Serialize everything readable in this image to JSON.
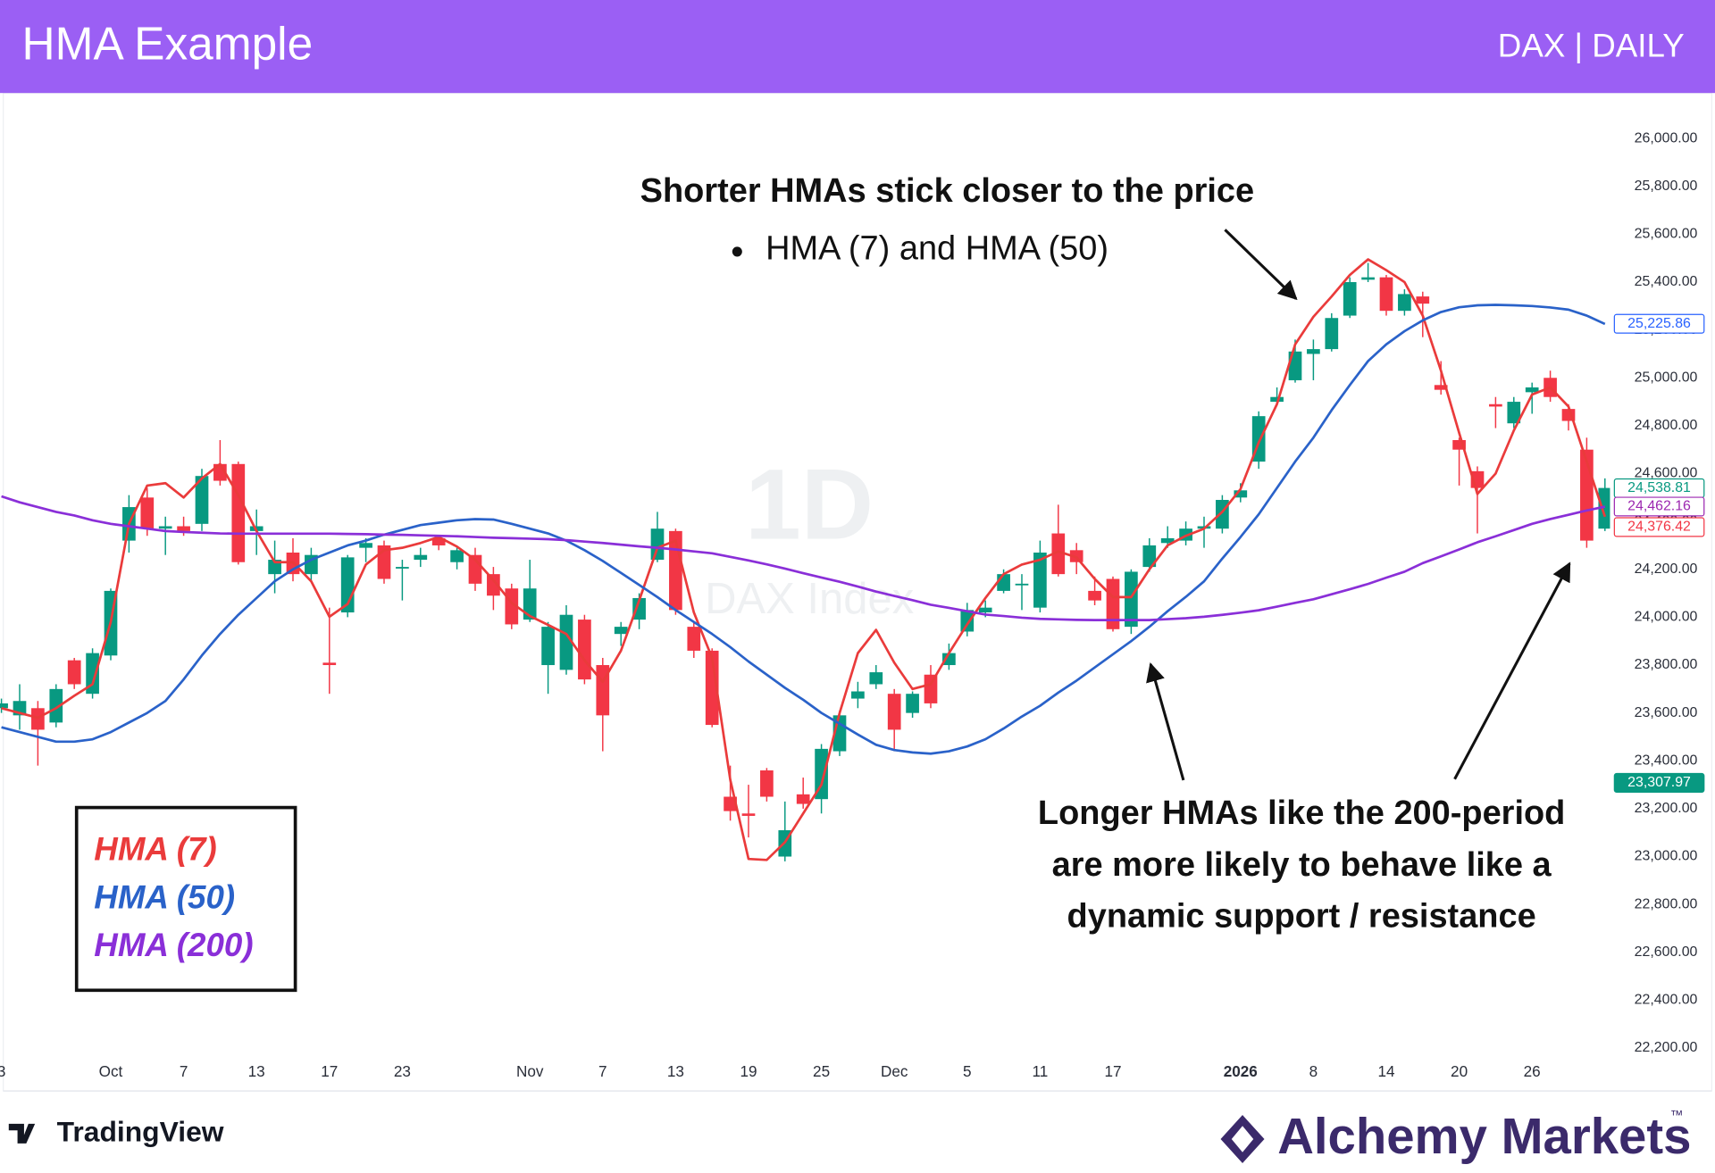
{
  "chart_data": {
    "type": "candlestick",
    "title": "HMA Example",
    "subtitle": "DAX | DAILY",
    "watermark": [
      "1D",
      "DAX Index"
    ],
    "categories": [
      "3",
      null,
      null,
      null,
      null,
      null,
      "Oct",
      null,
      null,
      null,
      "7",
      null,
      null,
      null,
      "13",
      null,
      null,
      null,
      "17",
      null,
      null,
      null,
      "23",
      null,
      null,
      null,
      null,
      null,
      null,
      "Nov",
      null,
      null,
      null,
      "7",
      null,
      null,
      null,
      "13",
      null,
      null,
      null,
      "19",
      null,
      null,
      null,
      "25",
      null,
      null,
      null,
      "Dec",
      null,
      null,
      null,
      "5",
      null,
      null,
      null,
      "11",
      null,
      null,
      null,
      "17",
      null,
      null,
      null,
      null,
      null,
      null,
      "2026",
      null,
      null,
      null,
      "8",
      null,
      null,
      null,
      "14",
      null,
      null,
      null,
      "20",
      null,
      null,
      null,
      "26",
      null,
      null,
      null,
      null
    ],
    "open": [
      23620,
      23590,
      23620,
      23560,
      23820,
      23680,
      23840,
      24320,
      24500,
      24370,
      24380,
      24390,
      24640,
      24640,
      24360,
      24180,
      24270,
      24180,
      23810,
      24020,
      24290,
      24300,
      24210,
      24240,
      24330,
      24230,
      24260,
      24180,
      24120,
      23990,
      23800,
      23780,
      23990,
      23800,
      23930,
      23990,
      24240,
      24360,
      23960,
      23860,
      23250,
      23180,
      23360,
      23000,
      23260,
      23240,
      23440,
      23660,
      23720,
      23680,
      23600,
      23760,
      23800,
      23940,
      24020,
      24110,
      24140,
      24040,
      24350,
      24280,
      24110,
      24160,
      23960,
      24210,
      24310,
      24320,
      24370,
      24370,
      24500,
      24650,
      24900,
      24990,
      25100,
      25120,
      25260,
      25410,
      25420,
      25280,
      25340,
      24970,
      24740,
      24610,
      24890,
      24810,
      24940,
      25000,
      24870,
      24700,
      24370
    ],
    "high": [
      23660,
      23720,
      23650,
      23720,
      23830,
      23870,
      24120,
      24510,
      24540,
      24420,
      24420,
      24620,
      24740,
      24650,
      24450,
      24320,
      24330,
      24290,
      24040,
      24260,
      24330,
      24320,
      24240,
      24290,
      24340,
      24290,
      24290,
      24210,
      24140,
      24240,
      23980,
      24050,
      24010,
      23830,
      23980,
      24100,
      24440,
      24370,
      23980,
      23870,
      23380,
      23300,
      23370,
      23230,
      23330,
      23470,
      23610,
      23730,
      23800,
      23700,
      23690,
      23800,
      23890,
      24060,
      24070,
      24200,
      24180,
      24320,
      24470,
      24310,
      24170,
      24170,
      24200,
      24330,
      24380,
      24400,
      24420,
      24510,
      24560,
      24860,
      24960,
      25160,
      25160,
      25270,
      25420,
      25480,
      25430,
      25370,
      25360,
      25070,
      24750,
      24630,
      24920,
      24920,
      24980,
      25030,
      24890,
      24750,
      24580
    ],
    "low": [
      23600,
      23530,
      23380,
      23540,
      23700,
      23660,
      23820,
      24270,
      24340,
      24260,
      24340,
      24360,
      24550,
      24220,
      24260,
      24100,
      24150,
      24150,
      23680,
      24000,
      24230,
      24140,
      24070,
      24210,
      24280,
      24200,
      24110,
      24030,
      23950,
      23980,
      23680,
      23760,
      23720,
      23440,
      23880,
      23950,
      24230,
      24010,
      23830,
      23540,
      23150,
      23080,
      23230,
      22980,
      23200,
      23180,
      23420,
      23620,
      23700,
      23440,
      23580,
      23620,
      23780,
      23920,
      24000,
      24100,
      24030,
      24020,
      24170,
      24180,
      24050,
      23940,
      23930,
      24190,
      24290,
      24300,
      24290,
      24350,
      24480,
      24620,
      24890,
      24980,
      24990,
      25110,
      25250,
      25400,
      25260,
      25260,
      25170,
      24930,
      24550,
      24350,
      24790,
      24790,
      24850,
      24900,
      24780,
      24290,
      24360
    ],
    "close": [
      23640,
      23650,
      23530,
      23700,
      23720,
      23850,
      24110,
      24460,
      24370,
      24380,
      24360,
      24590,
      24570,
      24230,
      24380,
      24240,
      24180,
      24260,
      23800,
      24250,
      24310,
      24160,
      24210,
      24260,
      24300,
      24280,
      24140,
      24090,
      23970,
      24120,
      23960,
      24010,
      23740,
      23590,
      23960,
      24080,
      24370,
      24030,
      23860,
      23550,
      23190,
      23170,
      23250,
      23110,
      23220,
      23450,
      23590,
      23690,
      23770,
      23530,
      23680,
      23640,
      23850,
      24030,
      24040,
      24180,
      24140,
      24270,
      24180,
      24230,
      24070,
      23950,
      24190,
      24300,
      24330,
      24370,
      24380,
      24490,
      24530,
      24840,
      24920,
      25110,
      25120,
      25250,
      25400,
      25420,
      25280,
      25350,
      25310,
      24950,
      24700,
      24540,
      24880,
      24900,
      24960,
      24920,
      24820,
      24320,
      24540
    ],
    "up_color": "#089981",
    "down_color": "#f23645",
    "series": [
      {
        "name": "HMA (7)",
        "color": "#ea3b3b",
        "values": [
          23620,
          23600,
          23580,
          23620,
          23672,
          23720,
          23980,
          24390,
          24550,
          24560,
          24500,
          24580,
          24640,
          24510,
          24360,
          24230,
          24230,
          24150,
          24002,
          24055,
          24220,
          24280,
          24290,
          24310,
          24335,
          24295,
          24240,
          24155,
          24060,
          24005,
          23968,
          23930,
          23820,
          23730,
          23860,
          24070,
          24290,
          24320,
          24020,
          23830,
          23320,
          22990,
          22986,
          23060,
          23180,
          23300,
          23600,
          23850,
          23947,
          23810,
          23700,
          23720,
          23850,
          23970,
          24080,
          24180,
          24220,
          24240,
          24275,
          24250,
          24160,
          24084,
          24084,
          24200,
          24300,
          24340,
          24370,
          24440,
          24535,
          24730,
          24890,
          25140,
          25255,
          25340,
          25430,
          25495,
          25450,
          25400,
          25260,
          25030,
          24770,
          24515,
          24600,
          24780,
          24930,
          24960,
          24880,
          24650,
          24420
        ]
      },
      {
        "name": "HMA (50)",
        "color": "#2a62c9",
        "values": [
          23540,
          23520,
          23500,
          23480,
          23480,
          23490,
          23520,
          23560,
          23600,
          23650,
          23740,
          23840,
          23930,
          24010,
          24080,
          24150,
          24200,
          24240,
          24270,
          24300,
          24320,
          24345,
          24365,
          24385,
          24395,
          24405,
          24410,
          24408,
          24390,
          24370,
          24350,
          24320,
          24280,
          24235,
          24185,
          24135,
          24084,
          24030,
          23980,
          23930,
          23875,
          23815,
          23760,
          23705,
          23655,
          23600,
          23555,
          23510,
          23467,
          23445,
          23435,
          23430,
          23440,
          23460,
          23490,
          23535,
          23585,
          23630,
          23685,
          23735,
          23790,
          23845,
          23900,
          23960,
          24025,
          24085,
          24150,
          24245,
          24335,
          24430,
          24540,
          24650,
          24750,
          24865,
          24970,
          25070,
          25140,
          25195,
          25240,
          25275,
          25295,
          25303,
          25305,
          25303,
          25300,
          25294,
          25285,
          25260,
          25225
        ]
      },
      {
        "name": "HMA (200)",
        "color": "#8a2fd8",
        "values": [
          24505,
          24480,
          24460,
          24440,
          24425,
          24405,
          24390,
          24380,
          24370,
          24360,
          24356,
          24353,
          24350,
          24349,
          24349,
          24349,
          24349,
          24349,
          24349,
          24348,
          24347,
          24345,
          24344,
          24342,
          24340,
          24338,
          24335,
          24332,
          24330,
          24328,
          24326,
          24322,
          24316,
          24310,
          24303,
          24296,
          24290,
          24283,
          24275,
          24267,
          24252,
          24237,
          24221,
          24203,
          24184,
          24166,
          24148,
          24128,
          24107,
          24089,
          24071,
          24052,
          24039,
          24025,
          24011,
          24005,
          23998,
          23993,
          23991,
          23989,
          23988,
          23988,
          23988,
          23988,
          23992,
          23996,
          24002,
          24010,
          24019,
          24029,
          24044,
          24060,
          24075,
          24096,
          24117,
          24139,
          24165,
          24190,
          24226,
          24254,
          24283,
          24313,
          24338,
          24364,
          24390,
          24410,
          24428,
          24446,
          24462
        ]
      }
    ],
    "price_labels": [
      {
        "value": 25225.86,
        "label": "25,225.86",
        "color": "#2962ff",
        "filled": false
      },
      {
        "value": 24538.81,
        "label": "24,538.81",
        "color": "#089981",
        "filled": false
      },
      {
        "value": 24462.16,
        "label": "24,462.16",
        "color": "#9c27b0",
        "filled": false
      },
      {
        "value": 24376.42,
        "label": "24,376.42",
        "color": "#f23645",
        "filled": false
      },
      {
        "value": 23307.97,
        "label": "23,307.97",
        "color": "#089981",
        "filled": true
      }
    ],
    "ylim": [
      22030,
      26190
    ],
    "yticks": [
      {
        "value": 22200,
        "label": "22,200.00"
      },
      {
        "value": 22400,
        "label": "22,400.00"
      },
      {
        "value": 22600,
        "label": "22,600.00"
      },
      {
        "value": 22800,
        "label": "22,800.00"
      },
      {
        "value": 23000,
        "label": "23,000.00"
      },
      {
        "value": 23200,
        "label": "23,200.00"
      },
      {
        "value": 23400,
        "label": "23,400.00"
      },
      {
        "value": 23600,
        "label": "23,600.00"
      },
      {
        "value": 23800,
        "label": "23,800.00"
      },
      {
        "value": 24000,
        "label": "24,000.00"
      },
      {
        "value": 24200,
        "label": "24,200.00"
      },
      {
        "value": 24400,
        "label": "24,400.00"
      },
      {
        "value": 24600,
        "label": "24,600.00"
      },
      {
        "value": 24800,
        "label": "24,800.00"
      },
      {
        "value": 25000,
        "label": "25,000.00"
      },
      {
        "value": 25200,
        "label": "25,200.00"
      },
      {
        "value": 25400,
        "label": "25,400.00"
      },
      {
        "value": 25600,
        "label": "25,600.00"
      },
      {
        "value": 25800,
        "label": "25,800.00"
      },
      {
        "value": 26000,
        "label": "26,000.00"
      }
    ],
    "grid": false,
    "annotations": [
      "Shorter HMAs stick closer to the price",
      "HMA (7) and HMA (50)",
      "Longer HMAs like the 200-period",
      "are more likely to behave like a",
      "dynamic support / resistance"
    ]
  },
  "footer": {
    "left": "TradingView",
    "right": "Alchemy Markets",
    "mark": "™"
  }
}
